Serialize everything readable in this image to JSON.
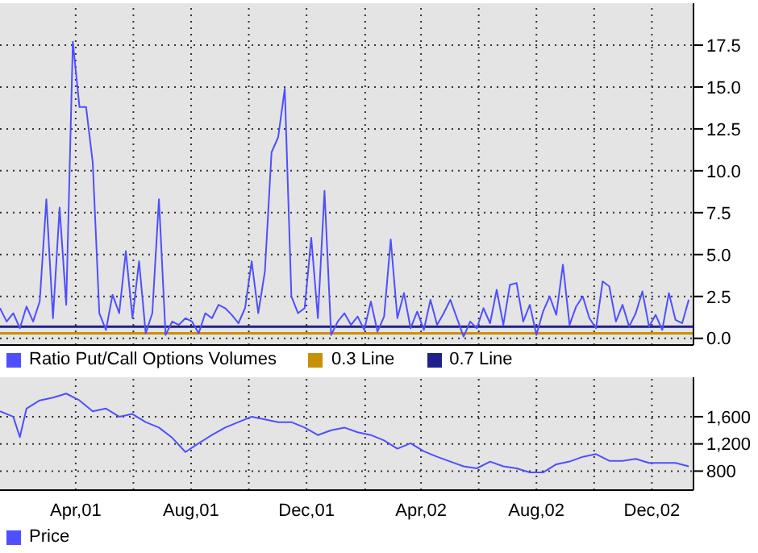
{
  "chart_data": [
    {
      "type": "line",
      "legend": "bottom",
      "grid": true,
      "marker": "none",
      "tick_labels": "y",
      "x": [
        "2001-01-11",
        "2001-01-18",
        "2001-01-25",
        "2001-02-01",
        "2001-02-08",
        "2001-02-15",
        "2001-02-22",
        "2001-03-01",
        "2001-03-08",
        "2001-03-15",
        "2001-03-22",
        "2001-03-29",
        "2001-04-05",
        "2001-04-12",
        "2001-04-19",
        "2001-04-26",
        "2001-05-03",
        "2001-05-10",
        "2001-05-17",
        "2001-05-24",
        "2001-05-31",
        "2001-06-07",
        "2001-06-14",
        "2001-06-21",
        "2001-06-28",
        "2001-07-05",
        "2001-07-12",
        "2001-07-19",
        "2001-07-26",
        "2001-08-02",
        "2001-08-09",
        "2001-08-16",
        "2001-08-23",
        "2001-08-30",
        "2001-09-06",
        "2001-09-13",
        "2001-09-20",
        "2001-09-27",
        "2001-10-04",
        "2001-10-11",
        "2001-10-18",
        "2001-10-25",
        "2001-11-01",
        "2001-11-08",
        "2001-11-15",
        "2001-11-22",
        "2001-11-29",
        "2001-12-06",
        "2001-12-13",
        "2001-12-20",
        "2001-12-27",
        "2002-01-03",
        "2002-01-10",
        "2002-01-17",
        "2002-01-24",
        "2002-01-31",
        "2002-02-07",
        "2002-02-14",
        "2002-02-21",
        "2002-02-28",
        "2002-03-07",
        "2002-03-14",
        "2002-03-21",
        "2002-03-28",
        "2002-04-04",
        "2002-04-11",
        "2002-04-18",
        "2002-04-25",
        "2002-05-02",
        "2002-05-09",
        "2002-05-16",
        "2002-05-23",
        "2002-05-30",
        "2002-06-06",
        "2002-06-13",
        "2002-06-20",
        "2002-06-27",
        "2002-07-04",
        "2002-07-11",
        "2002-07-18",
        "2002-07-25",
        "2002-08-01",
        "2002-08-08",
        "2002-08-15",
        "2002-08-22",
        "2002-08-29",
        "2002-09-05",
        "2002-09-12",
        "2002-09-19",
        "2002-09-26",
        "2002-10-03",
        "2002-10-10",
        "2002-10-17",
        "2002-10-24",
        "2002-10-31",
        "2002-11-07",
        "2002-11-14",
        "2002-11-21",
        "2002-11-28",
        "2002-12-05",
        "2002-12-12",
        "2002-12-19",
        "2002-12-26",
        "2003-01-02",
        "2003-01-09"
      ],
      "series": [
        {
          "name": "Ratio Put/Call Options Volumes",
          "color": "#4f4fff",
          "values": [
            1.8,
            1.0,
            1.5,
            0.6,
            1.9,
            1.0,
            2.2,
            8.3,
            1.2,
            7.8,
            2.0,
            17.7,
            13.8,
            13.8,
            10.5,
            1.5,
            0.5,
            2.6,
            1.5,
            5.2,
            1.2,
            4.6,
            0.3,
            1.5,
            8.3,
            0.2,
            1.0,
            0.8,
            1.2,
            1.0,
            0.3,
            1.5,
            1.2,
            2.0,
            1.8,
            1.4,
            0.9,
            1.8,
            4.6,
            1.5,
            4.0,
            11.1,
            12.0,
            14.9,
            2.5,
            1.5,
            1.8,
            6.0,
            1.2,
            8.8,
            0.2,
            1.0,
            1.5,
            0.8,
            1.3,
            0.5,
            2.2,
            0.4,
            1.3,
            5.9,
            1.2,
            2.7,
            0.6,
            1.6,
            0.5,
            2.3,
            0.8,
            1.5,
            2.3,
            1.2,
            0.1,
            1.0,
            0.6,
            1.8,
            0.9,
            2.9,
            0.8,
            3.2,
            3.3,
            1.0,
            2.0,
            0.2,
            1.6,
            2.5,
            1.4,
            4.4,
            0.8,
            1.9,
            2.5,
            1.2,
            0.6,
            3.4,
            3.1,
            1.0,
            2.0,
            0.7,
            1.5,
            2.8,
            0.7,
            1.4,
            0.5,
            2.7,
            1.1,
            0.9,
            2.3
          ]
        }
      ],
      "ref_lines": [
        {
          "axis": "y",
          "value": 0.3,
          "label": "0.3 Line",
          "color": "#c8900a"
        },
        {
          "axis": "y",
          "value": 0.7,
          "label": "0.7 Line",
          "color": "#20208a"
        }
      ],
      "xlim": [
        "2001-01-11",
        "2003-01-14"
      ],
      "xticks": [
        {
          "value": "2001-04-01",
          "label": null
        },
        {
          "value": "2001-06-01",
          "label": null
        },
        {
          "value": "2001-08-01",
          "label": null
        },
        {
          "value": "2001-10-01",
          "label": null
        },
        {
          "value": "2001-12-01",
          "label": null
        },
        {
          "value": "2002-02-01",
          "label": null
        },
        {
          "value": "2002-04-01",
          "label": null
        },
        {
          "value": "2002-06-01",
          "label": null
        },
        {
          "value": "2002-08-01",
          "label": null
        },
        {
          "value": "2002-10-01",
          "label": null
        },
        {
          "value": "2002-12-01",
          "label": null
        }
      ],
      "ylim": [
        -0.4,
        20
      ],
      "yticks": [
        {
          "value": 0,
          "label": "0.0"
        },
        2.5,
        {
          "value": 5,
          "label": "5.0"
        },
        7.5,
        {
          "value": 10,
          "label": "10.0"
        },
        12.5,
        {
          "value": 15,
          "label": "15.0"
        },
        17.5
      ]
    },
    {
      "type": "line",
      "legend": "bottom",
      "grid": true,
      "marker": "none",
      "x": [
        "2001-01-11",
        "2001-01-25",
        "2001-02-01",
        "2001-02-08",
        "2001-02-22",
        "2001-03-08",
        "2001-03-22",
        "2001-04-05",
        "2001-04-19",
        "2001-05-03",
        "2001-05-17",
        "2001-05-31",
        "2001-06-14",
        "2001-06-28",
        "2001-07-12",
        "2001-07-26",
        "2001-08-09",
        "2001-08-23",
        "2001-09-06",
        "2001-09-20",
        "2001-10-04",
        "2001-10-18",
        "2001-11-01",
        "2001-11-15",
        "2001-11-29",
        "2001-12-13",
        "2001-12-27",
        "2002-01-10",
        "2002-01-24",
        "2002-02-07",
        "2002-02-21",
        "2002-03-07",
        "2002-03-21",
        "2002-04-04",
        "2002-04-18",
        "2002-05-02",
        "2002-05-16",
        "2002-05-30",
        "2002-06-13",
        "2002-06-27",
        "2002-07-11",
        "2002-07-25",
        "2002-08-08",
        "2002-08-22",
        "2002-09-05",
        "2002-09-19",
        "2002-10-03",
        "2002-10-17",
        "2002-10-31",
        "2002-11-14",
        "2002-11-28",
        "2002-12-12",
        "2002-12-26",
        "2003-01-09"
      ],
      "series": [
        {
          "name": "Price",
          "color": "#4f4fff",
          "values": [
            1680,
            1600,
            1300,
            1720,
            1840,
            1880,
            1940,
            1840,
            1680,
            1720,
            1600,
            1640,
            1520,
            1440,
            1290,
            1080,
            1210,
            1330,
            1440,
            1520,
            1600,
            1560,
            1520,
            1520,
            1440,
            1330,
            1400,
            1440,
            1370,
            1330,
            1250,
            1130,
            1210,
            1090,
            1010,
            940,
            870,
            840,
            940,
            870,
            840,
            780,
            780,
            900,
            940,
            1010,
            1050,
            950,
            950,
            980,
            920,
            920,
            920,
            870
          ]
        }
      ],
      "xlim": [
        "2001-01-11",
        "2003-01-14"
      ],
      "xticks": [
        {
          "value": "2001-04-01",
          "label": "Apr,01"
        },
        {
          "value": "2001-06-01",
          "label": null
        },
        {
          "value": "2001-08-01",
          "label": "Aug,01"
        },
        {
          "value": "2001-10-01",
          "label": null
        },
        {
          "value": "2001-12-01",
          "label": "Dec,01"
        },
        {
          "value": "2002-02-01",
          "label": null
        },
        {
          "value": "2002-04-01",
          "label": "Apr,02"
        },
        {
          "value": "2002-06-01",
          "label": null
        },
        {
          "value": "2002-08-01",
          "label": "Aug,02"
        },
        {
          "value": "2002-10-01",
          "label": null
        },
        {
          "value": "2002-12-01",
          "label": "Dec,02"
        }
      ],
      "ylim": [
        520,
        2180
      ],
      "yticks": [
        800,
        {
          "value": 1200,
          "label": "1,200"
        },
        {
          "value": 1600,
          "label": "1,600"
        }
      ]
    }
  ]
}
